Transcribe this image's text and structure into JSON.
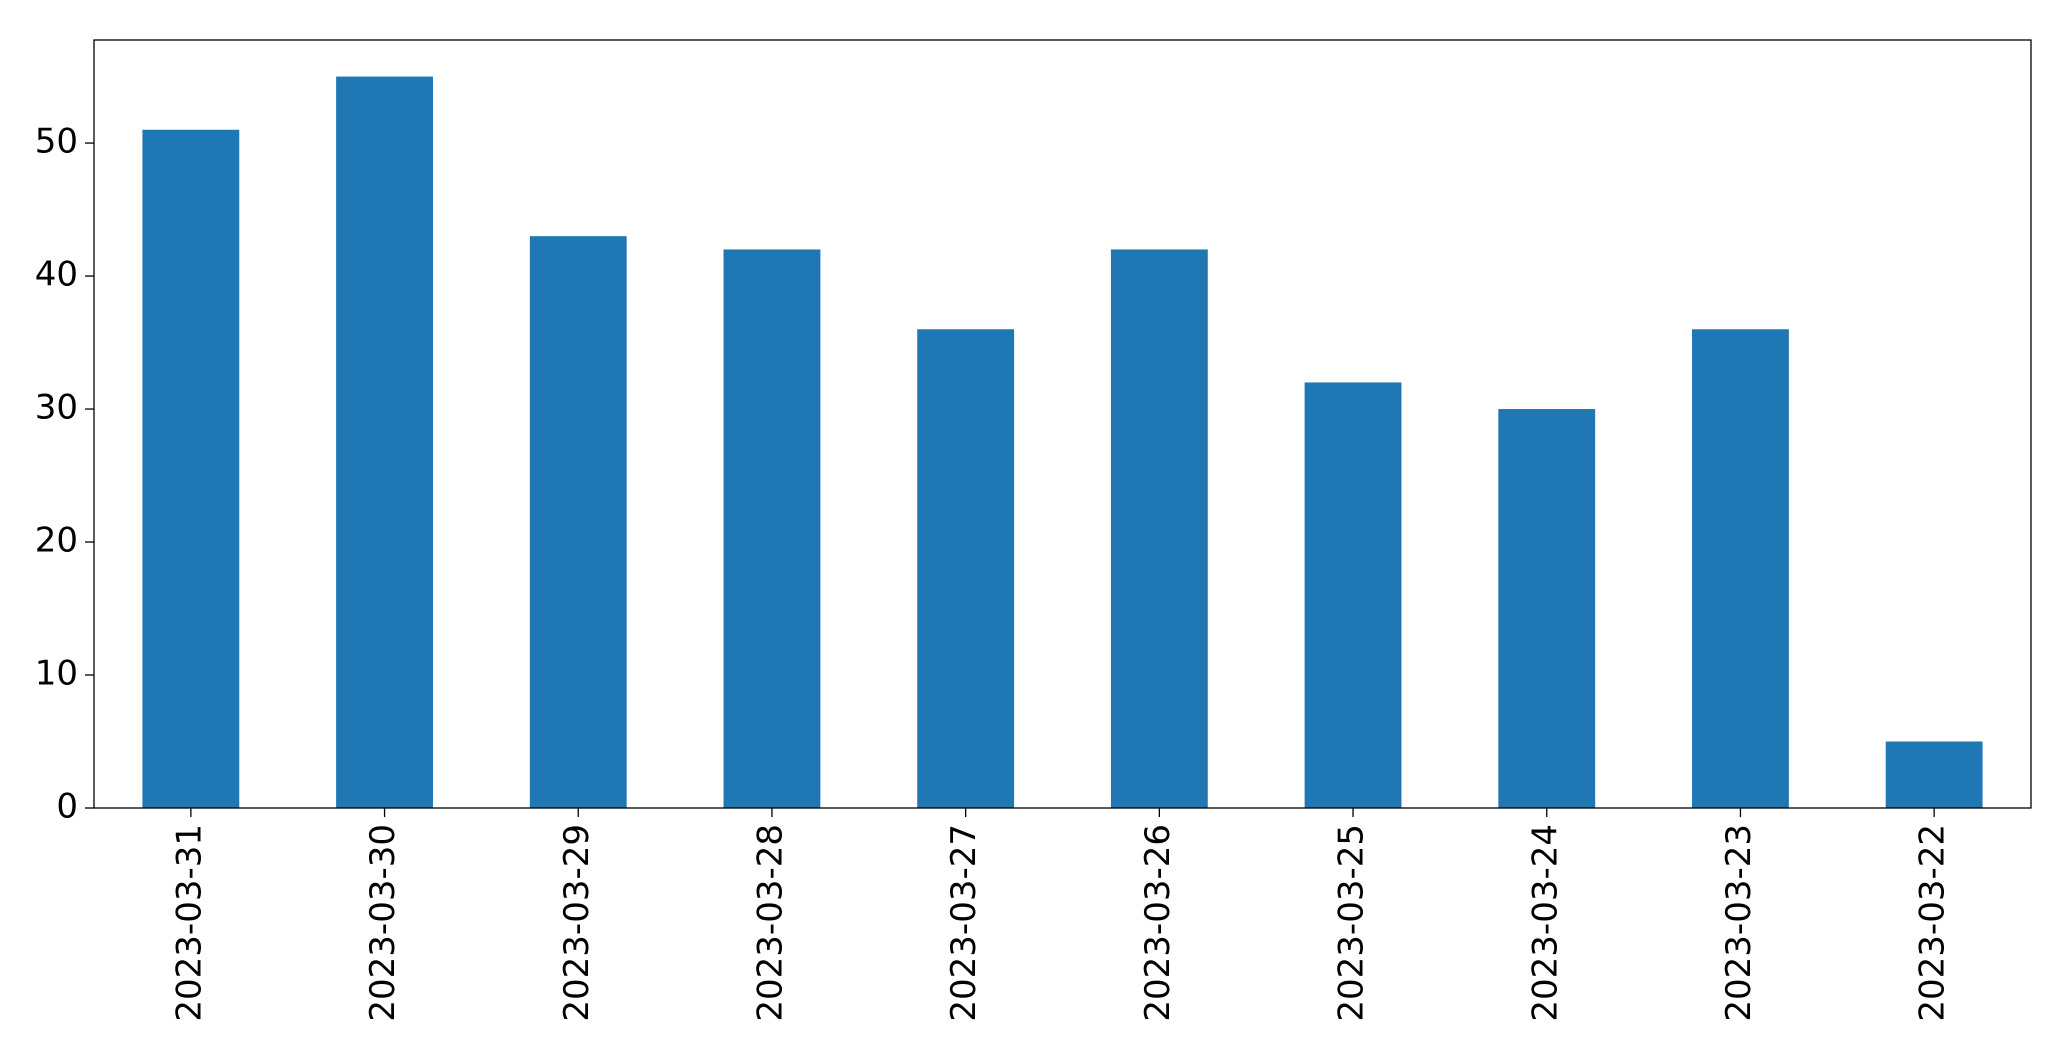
{
  "chart_data": {
    "type": "bar",
    "categories": [
      "2023-03-31",
      "2023-03-30",
      "2023-03-29",
      "2023-03-28",
      "2023-03-27",
      "2023-03-26",
      "2023-03-25",
      "2023-03-24",
      "2023-03-23",
      "2023-03-22"
    ],
    "values": [
      51,
      55,
      43,
      42,
      36,
      42,
      32,
      30,
      36,
      5
    ],
    "color": "#1f77b4",
    "ylim": [
      0,
      57.75
    ],
    "yticks": [
      0,
      10,
      20,
      30,
      40,
      50
    ],
    "grid": false
  }
}
